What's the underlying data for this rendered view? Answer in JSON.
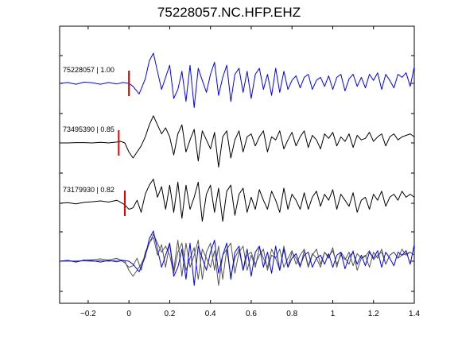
{
  "chart_data": {
    "type": "line",
    "title": "75228057.NC.HFP.EHZ",
    "xlabel": "",
    "ylabel": "",
    "xlim": [
      -0.34,
      1.4
    ],
    "xticks": [
      -0.2,
      0,
      0.2,
      0.4,
      0.6,
      0.8,
      1,
      1.2,
      1.4
    ],
    "xtick_labels": [
      "−0.2",
      "0",
      "0.2",
      "0.4",
      "0.6",
      "0.8",
      "1",
      "1.2",
      "1.4"
    ],
    "grid": false,
    "legend": "none",
    "pick_color": "#e00000",
    "series": [
      {
        "label": "75228057 | 1.00",
        "color": "#0000ff",
        "pick_time": 0.0,
        "x": [
          -0.34,
          -0.3,
          -0.26,
          -0.22,
          -0.18,
          -0.14,
          -0.1,
          -0.06,
          -0.03,
          0.0,
          0.02,
          0.05,
          0.08,
          0.1,
          0.12,
          0.14,
          0.16,
          0.18,
          0.2,
          0.22,
          0.24,
          0.26,
          0.28,
          0.3,
          0.32,
          0.34,
          0.36,
          0.38,
          0.4,
          0.42,
          0.44,
          0.46,
          0.48,
          0.5,
          0.52,
          0.54,
          0.56,
          0.58,
          0.6,
          0.62,
          0.64,
          0.66,
          0.68,
          0.7,
          0.72,
          0.74,
          0.76,
          0.78,
          0.8,
          0.82,
          0.84,
          0.86,
          0.88,
          0.9,
          0.92,
          0.94,
          0.96,
          0.98,
          1.0,
          1.02,
          1.04,
          1.06,
          1.08,
          1.1,
          1.12,
          1.14,
          1.16,
          1.18,
          1.2,
          1.22,
          1.24,
          1.26,
          1.28,
          1.3,
          1.32,
          1.34,
          1.36,
          1.38,
          1.4
        ],
        "y": [
          0.0,
          0.03,
          -0.03,
          0.04,
          0.02,
          -0.03,
          0.03,
          -0.02,
          0.03,
          0.0,
          -0.1,
          -0.35,
          0.15,
          0.75,
          1.0,
          0.4,
          -0.2,
          0.2,
          0.6,
          -0.5,
          -0.2,
          0.4,
          -0.6,
          0.6,
          -0.8,
          0.5,
          0.1,
          -0.3,
          0.3,
          0.7,
          -0.4,
          0.2,
          0.6,
          -0.6,
          0.3,
          0.5,
          -0.3,
          0.4,
          -0.5,
          0.3,
          0.5,
          -0.2,
          0.3,
          -0.4,
          0.5,
          -0.3,
          0.4,
          -0.2,
          0.1,
          0.25,
          -0.15,
          0.2,
          0.3,
          -0.2,
          0.1,
          0.2,
          -0.1,
          0.25,
          -0.2,
          0.2,
          0.3,
          -0.25,
          0.15,
          0.3,
          -0.1,
          0.2,
          -0.15,
          0.3,
          0.1,
          0.35,
          -0.2,
          0.3,
          0.1,
          -0.15,
          0.3,
          0.2,
          0.35,
          -0.1,
          0.55
        ]
      },
      {
        "label": "73495390 | 0.85",
        "color": "#000000",
        "pick_time": -0.05,
        "x": [
          -0.34,
          -0.3,
          -0.26,
          -0.22,
          -0.18,
          -0.14,
          -0.1,
          -0.06,
          -0.04,
          -0.02,
          0.0,
          0.02,
          0.04,
          0.06,
          0.08,
          0.1,
          0.12,
          0.14,
          0.16,
          0.18,
          0.2,
          0.22,
          0.24,
          0.26,
          0.28,
          0.3,
          0.32,
          0.34,
          0.36,
          0.38,
          0.4,
          0.42,
          0.44,
          0.46,
          0.48,
          0.5,
          0.52,
          0.54,
          0.56,
          0.58,
          0.6,
          0.62,
          0.64,
          0.66,
          0.68,
          0.7,
          0.72,
          0.74,
          0.76,
          0.78,
          0.8,
          0.82,
          0.84,
          0.86,
          0.88,
          0.9,
          0.92,
          0.94,
          0.96,
          0.98,
          1.0,
          1.02,
          1.04,
          1.06,
          1.08,
          1.1,
          1.12,
          1.14,
          1.16,
          1.18,
          1.2,
          1.22,
          1.24,
          1.26,
          1.28,
          1.3,
          1.32,
          1.34,
          1.36,
          1.38,
          1.4
        ],
        "y": [
          0.0,
          0.0,
          0.01,
          0.01,
          0.0,
          0.02,
          0.0,
          0.03,
          0.05,
          0.0,
          -0.3,
          -0.5,
          -0.3,
          -0.1,
          0.2,
          0.6,
          0.9,
          0.6,
          0.3,
          0.5,
          0.2,
          -0.4,
          0.3,
          0.6,
          -0.3,
          0.1,
          0.45,
          -0.6,
          0.4,
          0.1,
          -0.2,
          0.35,
          -0.8,
          0.2,
          0.4,
          -0.5,
          0.1,
          0.4,
          -0.3,
          0.2,
          0.3,
          -0.1,
          0.2,
          0.4,
          -0.3,
          0.2,
          0.1,
          0.4,
          -0.2,
          0.1,
          0.35,
          -0.1,
          0.2,
          0.4,
          -0.15,
          0.25,
          0.1,
          -0.2,
          0.3,
          0.15,
          0.35,
          -0.1,
          0.2,
          0.05,
          0.3,
          -0.15,
          0.25,
          0.1,
          0.15,
          0.35,
          0.05,
          0.2,
          0.3,
          -0.1,
          0.2,
          0.3,
          0.1,
          0.2,
          0.25,
          0.3,
          0.2
        ]
      },
      {
        "label": "73179930 | 0.82",
        "color": "#000000",
        "pick_time": -0.02,
        "x": [
          -0.34,
          -0.3,
          -0.26,
          -0.22,
          -0.18,
          -0.14,
          -0.1,
          -0.06,
          -0.04,
          -0.02,
          0.0,
          0.02,
          0.04,
          0.06,
          0.08,
          0.1,
          0.12,
          0.14,
          0.16,
          0.18,
          0.2,
          0.22,
          0.24,
          0.26,
          0.28,
          0.3,
          0.32,
          0.34,
          0.36,
          0.38,
          0.4,
          0.42,
          0.44,
          0.46,
          0.48,
          0.5,
          0.52,
          0.54,
          0.56,
          0.58,
          0.6,
          0.62,
          0.64,
          0.66,
          0.68,
          0.7,
          0.72,
          0.74,
          0.76,
          0.78,
          0.8,
          0.82,
          0.84,
          0.86,
          0.88,
          0.9,
          0.92,
          0.94,
          0.96,
          0.98,
          1.0,
          1.02,
          1.04,
          1.06,
          1.08,
          1.1,
          1.12,
          1.14,
          1.16,
          1.18,
          1.2,
          1.22,
          1.24,
          1.26,
          1.28,
          1.3,
          1.32,
          1.34,
          1.36,
          1.38,
          1.4
        ],
        "y": [
          0.0,
          0.02,
          -0.02,
          0.03,
          0.05,
          0.08,
          0.04,
          0.1,
          0.03,
          -0.05,
          -0.2,
          -0.15,
          0.1,
          -0.3,
          0.3,
          0.6,
          0.8,
          0.2,
          0.55,
          -0.2,
          0.6,
          -0.3,
          0.7,
          -0.5,
          0.6,
          -0.2,
          0.2,
          0.7,
          -0.6,
          0.3,
          0.6,
          -0.3,
          0.5,
          -0.6,
          0.4,
          0.6,
          -0.4,
          0.3,
          0.5,
          -0.3,
          0.2,
          -0.2,
          0.45,
          0.1,
          -0.2,
          0.4,
          0.1,
          -0.3,
          0.5,
          -0.2,
          0.3,
          0.1,
          -0.2,
          0.35,
          -0.2,
          0.2,
          0.4,
          -0.1,
          0.3,
          0.1,
          0.45,
          -0.2,
          0.3,
          0.1,
          -0.1,
          0.35,
          -0.3,
          0.1,
          0.2,
          -0.2,
          0.3,
          0.1,
          0.4,
          -0.1,
          0.2,
          0.3,
          0.1,
          0.4,
          0.2,
          0.3,
          0.2
        ]
      }
    ],
    "overlay_order": [
      1,
      2,
      0
    ]
  }
}
